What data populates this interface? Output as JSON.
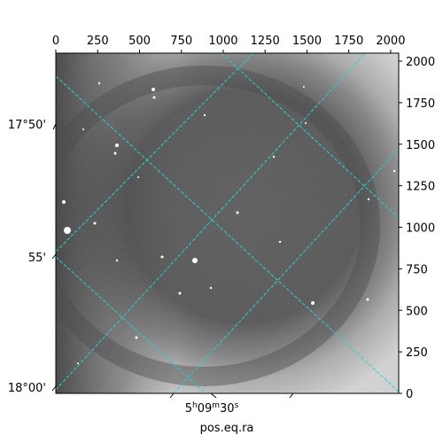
{
  "top_axis": {
    "ticks": [
      "0",
      "250",
      "500",
      "750",
      "1000",
      "1250",
      "1500",
      "1750",
      "2000"
    ]
  },
  "right_axis": {
    "ticks": [
      "0",
      "250",
      "500",
      "750",
      "1000",
      "1250",
      "1500",
      "1750",
      "2000"
    ]
  },
  "left_axis": {
    "ticks": [
      "17°50'",
      "55'",
      "18°00'"
    ]
  },
  "bottom_axis": {
    "tick": {
      "h": "5",
      "h_sup": "h",
      "m": "09",
      "m_sup": "m",
      "s": "30",
      "s_sup": "s"
    },
    "label": "pos.eq.ra"
  },
  "colors": {
    "grid": "#29d0d0",
    "frame": "#000000"
  }
}
